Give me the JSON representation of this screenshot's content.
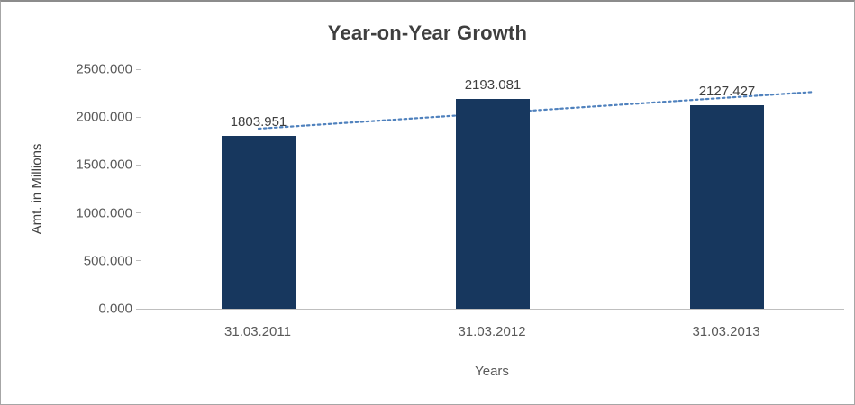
{
  "chart_data": {
    "type": "bar",
    "title": "Year-on-Year Growth",
    "xlabel": "Years",
    "ylabel": "Amt. in Millions",
    "categories": [
      "31.03.2011",
      "31.03.2012",
      "31.03.2013"
    ],
    "values": [
      1803.951,
      2193.081,
      2127.427
    ],
    "data_labels": [
      "1803.951",
      "2193.081",
      "2127.427"
    ],
    "y_ticks": [
      "2500.000",
      "2000.000",
      "1500.000",
      "1000.000",
      "500.000",
      "0.000"
    ],
    "ylim": [
      0,
      2500
    ],
    "grid": false,
    "legend": "none",
    "bar_color": "#17375e",
    "trendline": {
      "type": "linear",
      "style": "dotted",
      "color": "#4f81bd"
    }
  }
}
